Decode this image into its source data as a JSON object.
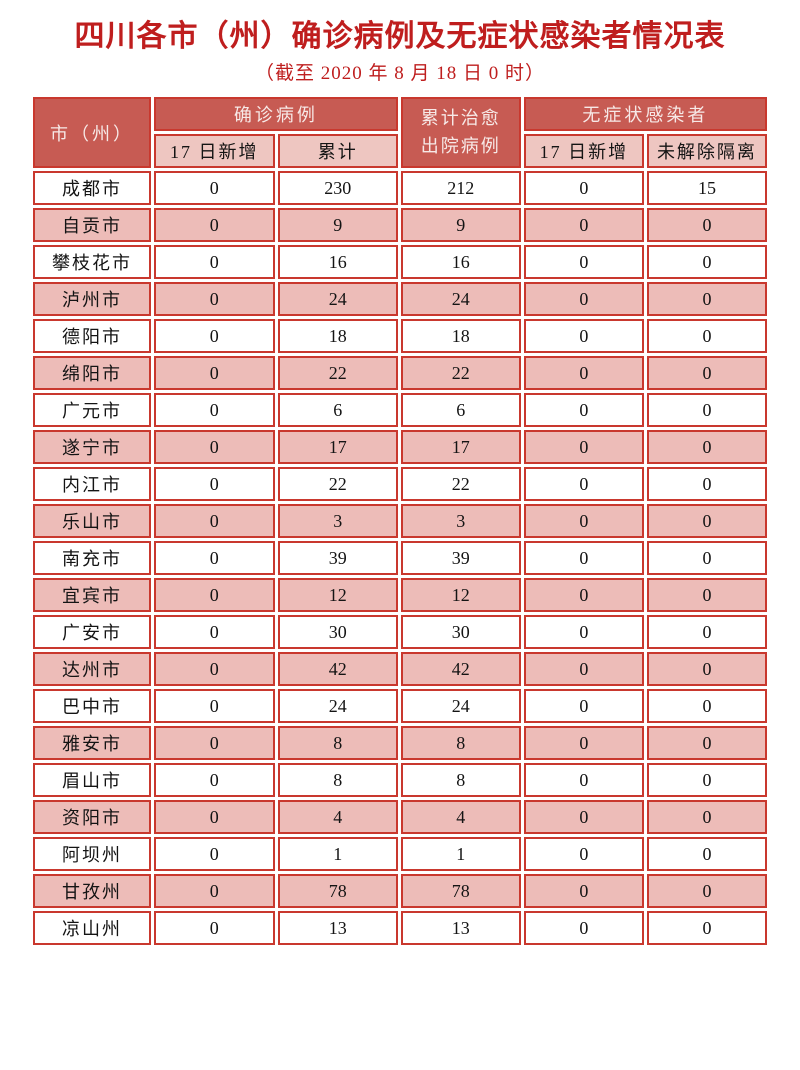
{
  "title": "四川各市（州）确诊病例及无症状感染者情况表",
  "subtitle": "（截至 2020 年 8 月 18 日 0 时）",
  "colors": {
    "title_red": "#bf1e1e",
    "header_bg": "#c75b53",
    "header_text": "#f7e9e7",
    "subheader_bg": "#eec6c1",
    "row_alt_bg": "#edbcb8",
    "border_red": "#c9382e",
    "text": "#141414"
  },
  "table": {
    "columns": {
      "city": "市（州）",
      "confirmed_group": "确诊病例",
      "confirmed_new": "17 日新增",
      "confirmed_total": "累计",
      "cured_total": "累计治愈出院病例",
      "asymptomatic_group": "无症状感染者",
      "asymptomatic_new": "17 日新增",
      "asymptomatic_quarantine": "未解除隔离"
    },
    "rows": [
      {
        "city": "成都市",
        "values": [
          "0",
          "230",
          "212",
          "0",
          "15"
        ]
      },
      {
        "city": "自贡市",
        "values": [
          "0",
          "9",
          "9",
          "0",
          "0"
        ]
      },
      {
        "city": "攀枝花市",
        "values": [
          "0",
          "16",
          "16",
          "0",
          "0"
        ]
      },
      {
        "city": "泸州市",
        "values": [
          "0",
          "24",
          "24",
          "0",
          "0"
        ]
      },
      {
        "city": "德阳市",
        "values": [
          "0",
          "18",
          "18",
          "0",
          "0"
        ]
      },
      {
        "city": "绵阳市",
        "values": [
          "0",
          "22",
          "22",
          "0",
          "0"
        ]
      },
      {
        "city": "广元市",
        "values": [
          "0",
          "6",
          "6",
          "0",
          "0"
        ]
      },
      {
        "city": "遂宁市",
        "values": [
          "0",
          "17",
          "17",
          "0",
          "0"
        ]
      },
      {
        "city": "内江市",
        "values": [
          "0",
          "22",
          "22",
          "0",
          "0"
        ]
      },
      {
        "city": "乐山市",
        "values": [
          "0",
          "3",
          "3",
          "0",
          "0"
        ]
      },
      {
        "city": "南充市",
        "values": [
          "0",
          "39",
          "39",
          "0",
          "0"
        ]
      },
      {
        "city": "宜宾市",
        "values": [
          "0",
          "12",
          "12",
          "0",
          "0"
        ]
      },
      {
        "city": "广安市",
        "values": [
          "0",
          "30",
          "30",
          "0",
          "0"
        ]
      },
      {
        "city": "达州市",
        "values": [
          "0",
          "42",
          "42",
          "0",
          "0"
        ]
      },
      {
        "city": "巴中市",
        "values": [
          "0",
          "24",
          "24",
          "0",
          "0"
        ]
      },
      {
        "city": "雅安市",
        "values": [
          "0",
          "8",
          "8",
          "0",
          "0"
        ]
      },
      {
        "city": "眉山市",
        "values": [
          "0",
          "8",
          "8",
          "0",
          "0"
        ]
      },
      {
        "city": "资阳市",
        "values": [
          "0",
          "4",
          "4",
          "0",
          "0"
        ]
      },
      {
        "city": "阿坝州",
        "values": [
          "0",
          "1",
          "1",
          "0",
          "0"
        ]
      },
      {
        "city": "甘孜州",
        "values": [
          "0",
          "78",
          "78",
          "0",
          "0"
        ]
      },
      {
        "city": "凉山州",
        "values": [
          "0",
          "13",
          "13",
          "0",
          "0"
        ]
      }
    ]
  }
}
